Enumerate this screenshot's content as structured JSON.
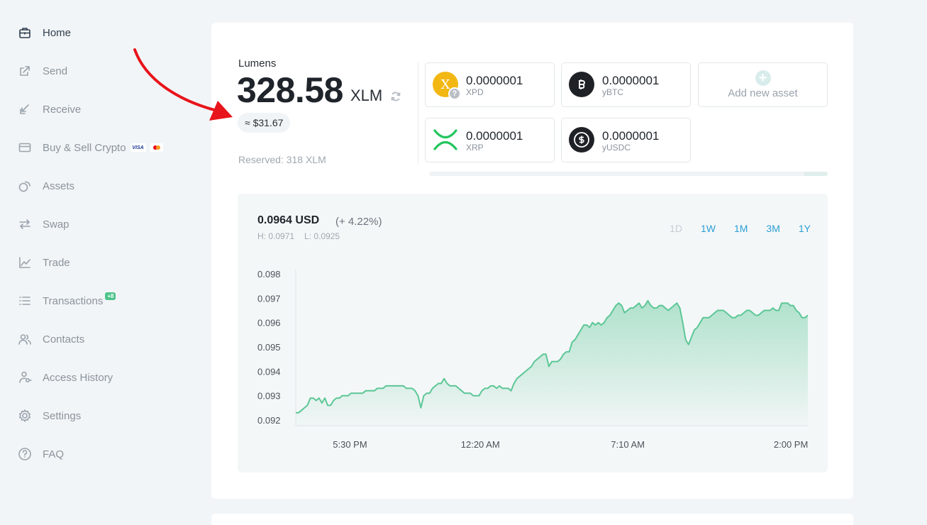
{
  "sidebar": {
    "items": [
      {
        "label": "Home",
        "icon": "briefcase-icon",
        "active": true
      },
      {
        "label": "Send",
        "icon": "send-arrow-icon"
      },
      {
        "label": "Receive",
        "icon": "receive-arrow-icon"
      },
      {
        "label": "Buy & Sell Crypto",
        "icon": "credit-card-icon"
      },
      {
        "label": "Assets",
        "icon": "coins-icon"
      },
      {
        "label": "Swap",
        "icon": "swap-arrows-icon"
      },
      {
        "label": "Trade",
        "icon": "line-chart-icon"
      },
      {
        "label": "Transactions",
        "icon": "list-icon",
        "badge": "+8"
      },
      {
        "label": "Contacts",
        "icon": "users-icon"
      },
      {
        "label": "Access History",
        "icon": "user-key-icon"
      },
      {
        "label": "Settings",
        "icon": "gear-icon"
      },
      {
        "label": "FAQ",
        "icon": "question-circle-icon"
      }
    ],
    "visa_label": "VISA"
  },
  "balance": {
    "label": "Lumens",
    "amount": "328.58",
    "unit": "XLM",
    "usd": "≈ $31.67",
    "reserved": "Reserved: 318 XLM"
  },
  "assets": [
    {
      "amount": "0.0000001",
      "code": "XPD",
      "logo_letter": "X",
      "color": "#f2b713"
    },
    {
      "amount": "0.0000001",
      "code": "yBTC",
      "color": "#1e2227"
    },
    {
      "amount": "0.0000001",
      "code": "XRP",
      "color": "#22c55e"
    },
    {
      "amount": "0.0000001",
      "code": "yUSDC",
      "color": "#1e2227"
    }
  ],
  "add_asset_label": "Add new asset",
  "chart_header": {
    "price": "0.0964 USD",
    "change": "(+ 4.22%)",
    "high": "H: 0.0971",
    "low": "L: 0.0925",
    "ranges": [
      {
        "label": "1D",
        "disabled": true
      },
      {
        "label": "1W"
      },
      {
        "label": "1M"
      },
      {
        "label": "3M"
      },
      {
        "label": "1Y"
      }
    ]
  },
  "chart_data": {
    "type": "area",
    "ylim": [
      0.092,
      0.098
    ],
    "yticks": [
      "0.098",
      "0.097",
      "0.096",
      "0.095",
      "0.094",
      "0.093",
      "0.092"
    ],
    "xticks": [
      "5:30 PM",
      "12:20 AM",
      "7:10 AM",
      "2:00 PM"
    ],
    "xtick_positions": [
      0.107,
      0.357,
      0.65,
      0.968
    ],
    "grid": false,
    "color": "#5cc796",
    "values": [
      0.0923,
      0.0923,
      0.0924,
      0.0925,
      0.0926,
      0.0929,
      0.0929,
      0.0928,
      0.0929,
      0.0927,
      0.0929,
      0.0926,
      0.0926,
      0.0928,
      0.0929,
      0.0929,
      0.093,
      0.093,
      0.093,
      0.0931,
      0.0931,
      0.0931,
      0.0931,
      0.0931,
      0.0932,
      0.0932,
      0.0932,
      0.0932,
      0.0933,
      0.0933,
      0.0933,
      0.0934,
      0.0934,
      0.0934,
      0.0934,
      0.0934,
      0.0934,
      0.0934,
      0.0933,
      0.0933,
      0.0933,
      0.0932,
      0.093,
      0.0925,
      0.093,
      0.0931,
      0.0931,
      0.0933,
      0.0934,
      0.0935,
      0.0935,
      0.0937,
      0.0935,
      0.0934,
      0.0934,
      0.0934,
      0.0933,
      0.0932,
      0.0931,
      0.0931,
      0.0931,
      0.093,
      0.093,
      0.093,
      0.0932,
      0.0933,
      0.0933,
      0.0934,
      0.0934,
      0.0933,
      0.0934,
      0.0933,
      0.0933,
      0.0933,
      0.0932,
      0.0935,
      0.0937,
      0.0938,
      0.0939,
      0.094,
      0.0941,
      0.0942,
      0.0944,
      0.0945,
      0.0946,
      0.0947,
      0.0947,
      0.0942,
      0.0944,
      0.0944,
      0.0944,
      0.0945,
      0.0947,
      0.0948,
      0.0948,
      0.0952,
      0.0953,
      0.0955,
      0.0957,
      0.0959,
      0.0959,
      0.0958,
      0.096,
      0.0959,
      0.096,
      0.0959,
      0.096,
      0.0962,
      0.0963,
      0.0965,
      0.0967,
      0.0968,
      0.0967,
      0.0964,
      0.0965,
      0.0966,
      0.0966,
      0.0967,
      0.0968,
      0.0966,
      0.0967,
      0.0969,
      0.0967,
      0.0966,
      0.0966,
      0.0967,
      0.0967,
      0.0966,
      0.0965,
      0.0966,
      0.0967,
      0.0968,
      0.0966,
      0.096,
      0.0953,
      0.0951,
      0.0954,
      0.0957,
      0.0958,
      0.096,
      0.0962,
      0.0962,
      0.0962,
      0.0963,
      0.0964,
      0.0965,
      0.0965,
      0.0965,
      0.0964,
      0.0963,
      0.0962,
      0.0962,
      0.0963,
      0.0963,
      0.0964,
      0.0965,
      0.0965,
      0.0964,
      0.0963,
      0.0963,
      0.0964,
      0.0965,
      0.0965,
      0.0965,
      0.0966,
      0.0965,
      0.0965,
      0.0968,
      0.0968,
      0.0968,
      0.0967,
      0.0967,
      0.0965,
      0.0964,
      0.0962,
      0.0962,
      0.0963
    ]
  }
}
